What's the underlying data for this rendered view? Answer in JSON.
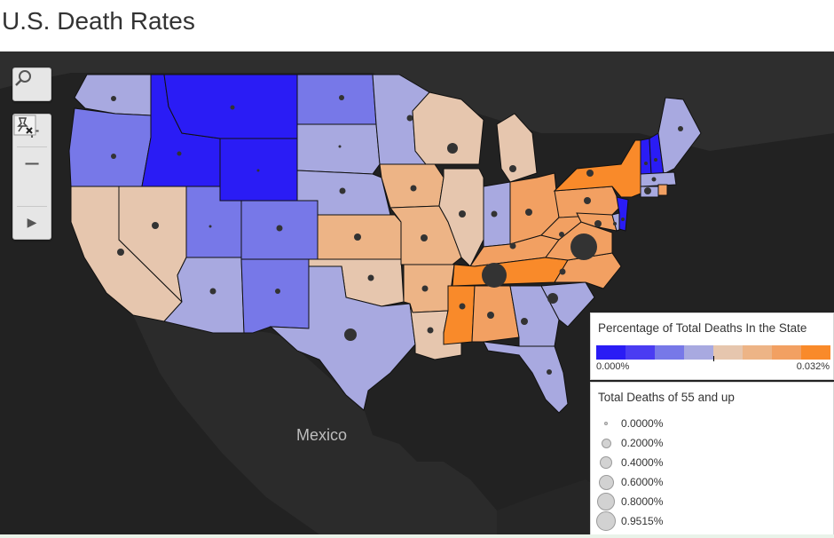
{
  "page": {
    "title": "U.S. Death Rates"
  },
  "map": {
    "country_label": "Mexico",
    "colors": {
      "background": "#222222",
      "land": "#2b2b2b",
      "deep_blue": "#2a1cf5",
      "blue": "#5150f0",
      "mid_blue": "#7778e8",
      "light_blue": "#a8a9e0",
      "peach": "#e6c6ae",
      "light_orange": "#eda66f",
      "orange": "#f29a4f",
      "bright_orange": "#f98a2a"
    }
  },
  "toolbar": {
    "search_icon": "search-icon",
    "zoom_in_icon": "plus-icon",
    "zoom_out_icon": "minus-icon",
    "pin_icon": "unpin-icon",
    "expand_icon": "play-icon",
    "zoom_in_label": "+",
    "zoom_out_label": "−",
    "expand_label": "▶"
  },
  "legend_color": {
    "title": "Percentage of Total Deaths In the State",
    "min_label": "0.000%",
    "max_label": "0.032%",
    "ramp": [
      "#2a1cf5",
      "#4a3cf2",
      "#7778e8",
      "#a8a9e0",
      "#e6c6ae",
      "#edb486",
      "#f2a062",
      "#f98a2a"
    ]
  },
  "legend_size": {
    "title": "Total Deaths of 55 and up",
    "items": [
      {
        "label": "0.0000%"
      },
      {
        "label": "0.2000%"
      },
      {
        "label": "0.4000%"
      },
      {
        "label": "0.6000%"
      },
      {
        "label": "0.8000%"
      },
      {
        "label": "0.9515%"
      }
    ]
  }
}
